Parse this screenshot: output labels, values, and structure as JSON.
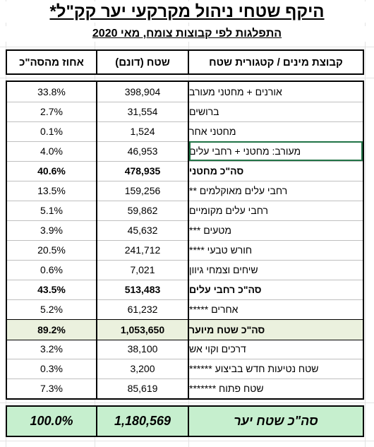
{
  "title": "היקף שטחי ניהול מקרקעי יער קק\"ל*",
  "subtitle": "התפלגות לפי קבוצות צומח, מאי 2020",
  "headers": {
    "category": "קבוצת מינים / קטגורית שטח",
    "area": "שטח (דונם)",
    "percent": "אחוז מהסה\"כ"
  },
  "rows": [
    {
      "category": "אורנים + מחטני מעורב",
      "area": "398,904",
      "percent": "33.8%"
    },
    {
      "category": "ברושים",
      "area": "31,554",
      "percent": "2.7%"
    },
    {
      "category": "מחטני אחר",
      "area": "1,524",
      "percent": "0.1%"
    },
    {
      "category": "מעורב: מחטני + רחבי עלים",
      "area": "46,953",
      "percent": "4.0%"
    },
    {
      "category": "סה\"כ מחטני",
      "area": "478,935",
      "percent": "40.6%"
    },
    {
      "category": "רחבי עלים מאוקלמים **",
      "area": "159,256",
      "percent": "13.5%"
    },
    {
      "category": "רחבי עלים מקומיים",
      "area": "59,862",
      "percent": "5.1%"
    },
    {
      "category": "מטעים ***",
      "area": "45,632",
      "percent": "3.9%"
    },
    {
      "category": "חורש טבעי ****",
      "area": "241,712",
      "percent": "20.5%"
    },
    {
      "category": "שיחים וצמחי גיוון",
      "area": "7,021",
      "percent": "0.6%"
    },
    {
      "category": "סה\"כ רחבי עלים",
      "area": "513,483",
      "percent": "43.5%"
    },
    {
      "category": "אחרים *****",
      "area": "61,232",
      "percent": "5.2%"
    },
    {
      "category": "סה\"כ שטח מיוער",
      "area": "1,053,650",
      "percent": "89.2%"
    },
    {
      "category": "דרכים וקוי אש",
      "area": "38,100",
      "percent": "3.2%"
    },
    {
      "category": "שטח נטיעות חדש בביצוע ******",
      "area": "3,200",
      "percent": "0.3%"
    },
    {
      "category": "שטח פתוח *******",
      "area": "85,619",
      "percent": "7.3%"
    }
  ],
  "total": {
    "category": "סה\"כ שטח יער",
    "area": "1,180,569",
    "percent": "100.0%"
  },
  "colors": {
    "subtotal_fill": "#ebf1de",
    "total_fill": "#c6efce",
    "selection_border": "#217346"
  }
}
